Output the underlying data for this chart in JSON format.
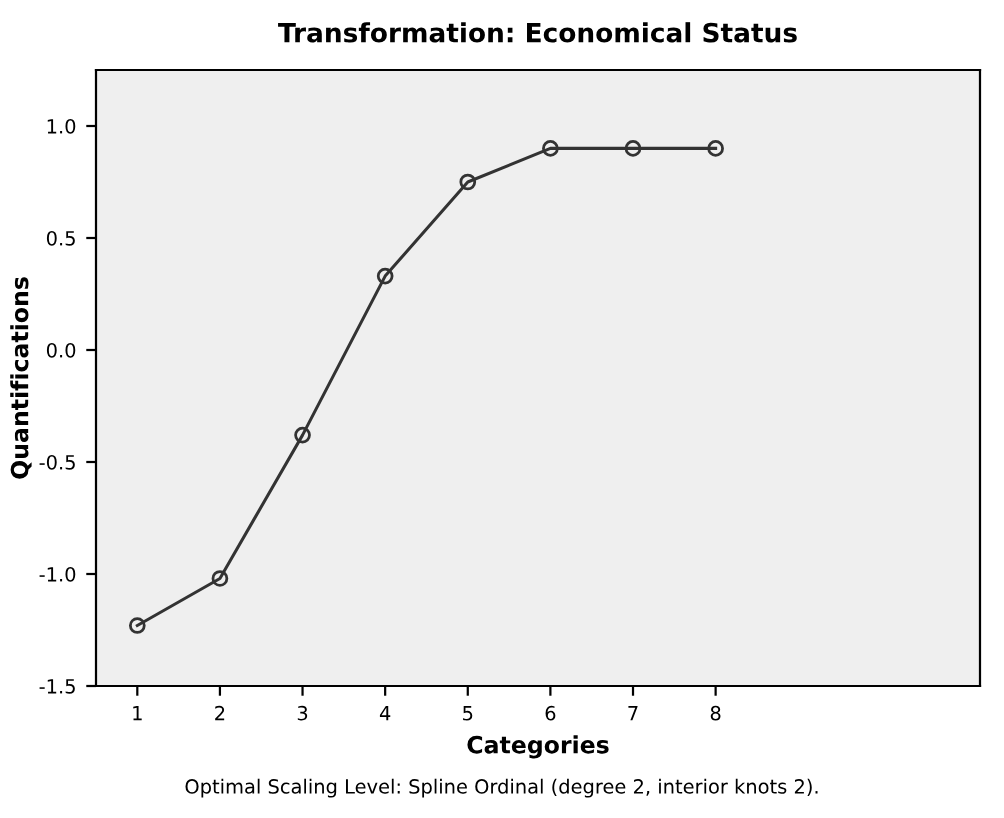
{
  "chart_data": {
    "type": "line",
    "title": "Transformation: Economical Status",
    "xlabel": "Categories",
    "ylabel": "Quantifications",
    "x": [
      1,
      2,
      3,
      4,
      5,
      6,
      7,
      8
    ],
    "series": [
      {
        "color": "#333333",
        "values": [
          -1.23,
          -1.02,
          -0.38,
          0.33,
          0.75,
          0.9,
          0.9,
          0.9
        ]
      }
    ],
    "xlim": [
      0.5,
      11.2
    ],
    "xticks": [
      1,
      2,
      3,
      4,
      5,
      6,
      7,
      8
    ],
    "ylim": [
      -1.5,
      1.25
    ],
    "yticks": [
      -1.5,
      {
        "value": -1,
        "label": "-1.0"
      },
      -0.5,
      {
        "value": 0,
        "label": "0.0"
      },
      0.5,
      {
        "value": 1,
        "label": "1.0"
      }
    ],
    "marker": "circle",
    "line_style": "solid",
    "grid": false,
    "legend": false,
    "annotations": [
      "Optimal Scaling Level: Spline Ordinal (degree 2, interior knots 2)."
    ]
  }
}
